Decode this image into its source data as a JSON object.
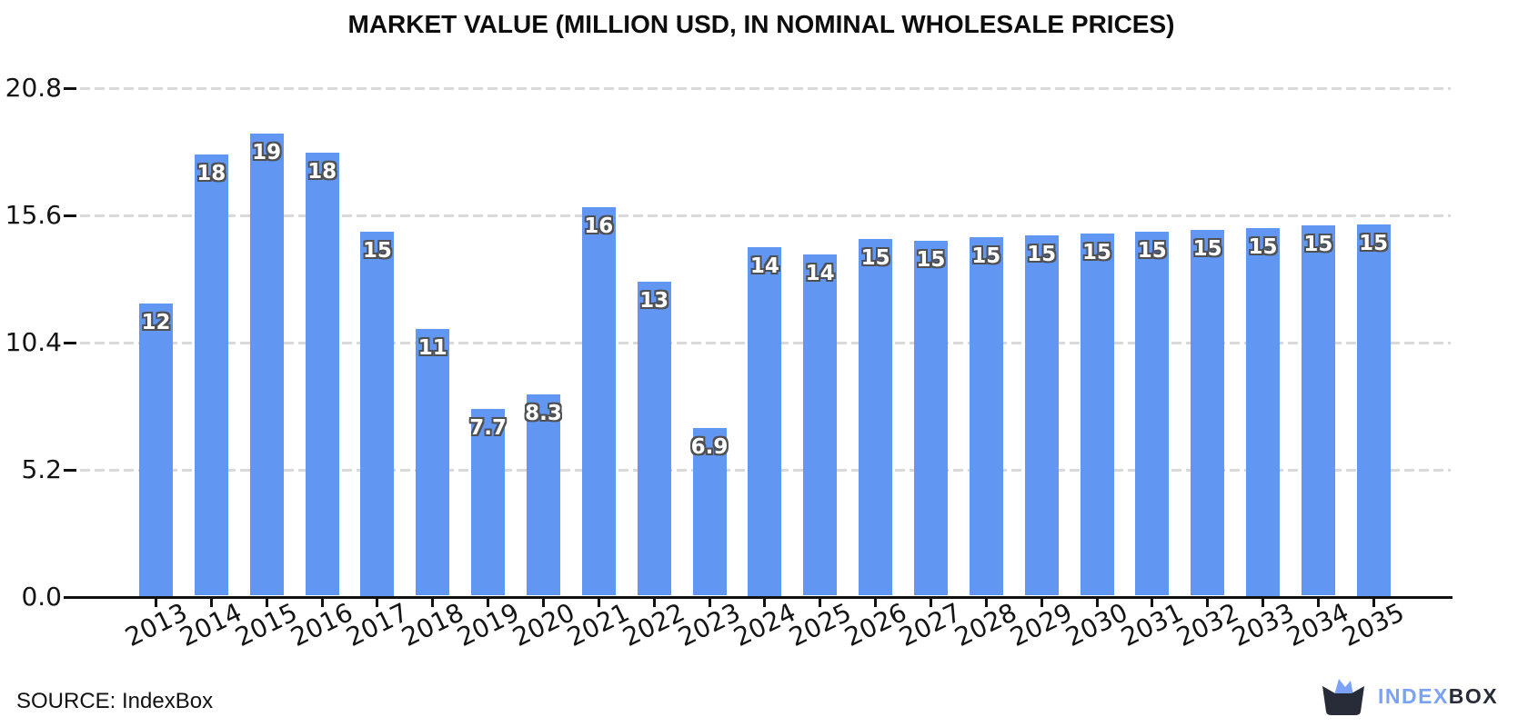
{
  "title": "MARKET VALUE (MILLION USD, IN NOMINAL WHOLESALE PRICES)",
  "source": {
    "label": "SOURCE: IndexBox"
  },
  "logo": {
    "text_primary": "INDEX",
    "text_secondary": "BOX"
  },
  "colors": {
    "bar": "#6196f2",
    "grid": "#d9d9d9",
    "axis": "#111111",
    "bar_label_fill": "#ffffff",
    "bar_label_outline": "#4f5054",
    "logo_blue": "#7ba2f7",
    "logo_dark": "#282c38"
  },
  "chart_data": {
    "type": "bar",
    "title": "MARKET VALUE (MILLION USD, IN NOMINAL WHOLESALE PRICES)",
    "xlabel": "",
    "ylabel": "",
    "categories": [
      "2013",
      "2014",
      "2015",
      "2016",
      "2017",
      "2018",
      "2019",
      "2020",
      "2021",
      "2022",
      "2023",
      "2024",
      "2025",
      "2026",
      "2027",
      "2028",
      "2029",
      "2030",
      "2031",
      "2032",
      "2033",
      "2034",
      "2035"
    ],
    "values": [
      12,
      18,
      19,
      18,
      15,
      11,
      7.7,
      8.3,
      16,
      13,
      6.9,
      14,
      14,
      15,
      15,
      15,
      15,
      15,
      15,
      15,
      15,
      15,
      15
    ],
    "bar_labels": [
      "12",
      "18",
      "19",
      "18",
      "15",
      "11",
      "7.7",
      "8.3",
      "16",
      "13",
      "6.9",
      "14",
      "14",
      "15",
      "15",
      "15",
      "15",
      "15",
      "15",
      "15",
      "15",
      "15",
      "15"
    ],
    "render_values": [
      12.0,
      18.1,
      18.95,
      18.15,
      14.95,
      10.95,
      7.7,
      8.3,
      15.95,
      12.9,
      6.9,
      14.3,
      14.0,
      14.65,
      14.55,
      14.7,
      14.78,
      14.85,
      14.92,
      15.0,
      15.08,
      15.18,
      15.25
    ],
    "ylim": [
      0,
      20.8
    ],
    "yticks": [
      0.0,
      5.2,
      10.4,
      15.6,
      20.8
    ],
    "ytick_labels": [
      "0.0",
      "5.2",
      "10.4",
      "15.6",
      "20.8"
    ],
    "grid": "horizontal-dashed",
    "legend": "none"
  }
}
